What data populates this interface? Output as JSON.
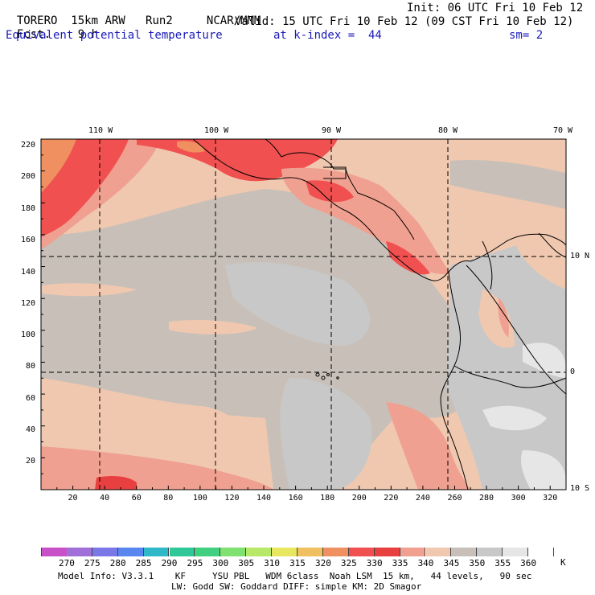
{
  "header": {
    "model": "TORERO",
    "resolution": "15km ARW",
    "run": "Run2",
    "center": "NCAR/MMM",
    "init": "Init: 06 UTC Fri 10 Feb 12",
    "fcst_label": "Fcst.",
    "fcst_value": "9 h",
    "valid": "Valid: 15 UTC Fri 10 Feb 12 (09 CST Fri 10 Feb 12)",
    "field": "Equivalent potential temperature",
    "level": "at k-index =  44",
    "smoothing": "sm= 2"
  },
  "map": {
    "lon_labels": [
      "110 W",
      "100 W",
      "90 W",
      "80 W",
      "70 W"
    ],
    "lat_labels": [
      "10 N",
      "0",
      "10 S"
    ],
    "y_ticks": [
      "220",
      "200",
      "180",
      "160",
      "140",
      "120",
      "100",
      "80",
      "60",
      "40",
      "20"
    ],
    "x_ticks": [
      "20",
      "40",
      "60",
      "80",
      "100",
      "120",
      "140",
      "160",
      "180",
      "200",
      "220",
      "240",
      "260",
      "280",
      "300",
      "320"
    ]
  },
  "colorbar": {
    "levels": [
      "270",
      "275",
      "280",
      "285",
      "290",
      "295",
      "300",
      "305",
      "310",
      "315",
      "320",
      "325",
      "330",
      "335",
      "340",
      "345",
      "350",
      "355",
      "360"
    ],
    "unit": "K",
    "colors": [
      "#c850c8",
      "#a070d8",
      "#7a78e8",
      "#5a86f0",
      "#2eb8c8",
      "#30c898",
      "#40d080",
      "#80e070",
      "#b8e868",
      "#e8e860",
      "#f0c060",
      "#f09060",
      "#f05050",
      "#e84040",
      "#f0a090",
      "#f0c8b0",
      "#c8c0b8",
      "#c8c8c8",
      "#e6e6e6",
      "#ffffff"
    ]
  },
  "footer": {
    "line1": "Model Info: V3.3.1    KF     YSU PBL   WDM 6class  Noah LSM  15 km,   44 levels,   90 sec",
    "line2": "LW: Godd SW: Goddard DIFF: simple KM: 2D Smagor"
  }
}
